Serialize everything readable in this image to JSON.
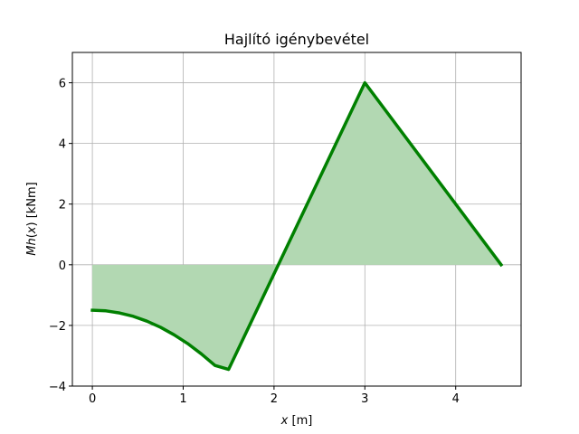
{
  "chart_data": {
    "type": "area",
    "title": "Hajlító igénybevétel",
    "xlabel_var": "x",
    "xlabel_unit": " [m]",
    "ylabel_func": "Mh",
    "ylabel_arg": "x",
    "ylabel_unit": " [kNm]",
    "xlim": [
      -0.22,
      4.72
    ],
    "ylim": [
      -4,
      7
    ],
    "xticks": [
      0,
      1,
      2,
      3,
      4
    ],
    "yticks": [
      -4,
      -2,
      0,
      2,
      4,
      6
    ],
    "grid": true,
    "line_color": "#008000",
    "fill_color": "#b2d8b2",
    "grid_color": "#b0b0b0",
    "series": [
      {
        "x": [
          0,
          0.15,
          0.3,
          0.45,
          0.6,
          0.75,
          0.9,
          1.05,
          1.2,
          1.35,
          1.5,
          2.0,
          3.0,
          4.5
        ],
        "values": [
          -1.5,
          -1.52,
          -1.59,
          -1.7,
          -1.86,
          -2.06,
          -2.31,
          -2.6,
          -2.94,
          -3.32,
          -3.45,
          -0.3,
          6.0,
          0.0
        ]
      }
    ]
  }
}
